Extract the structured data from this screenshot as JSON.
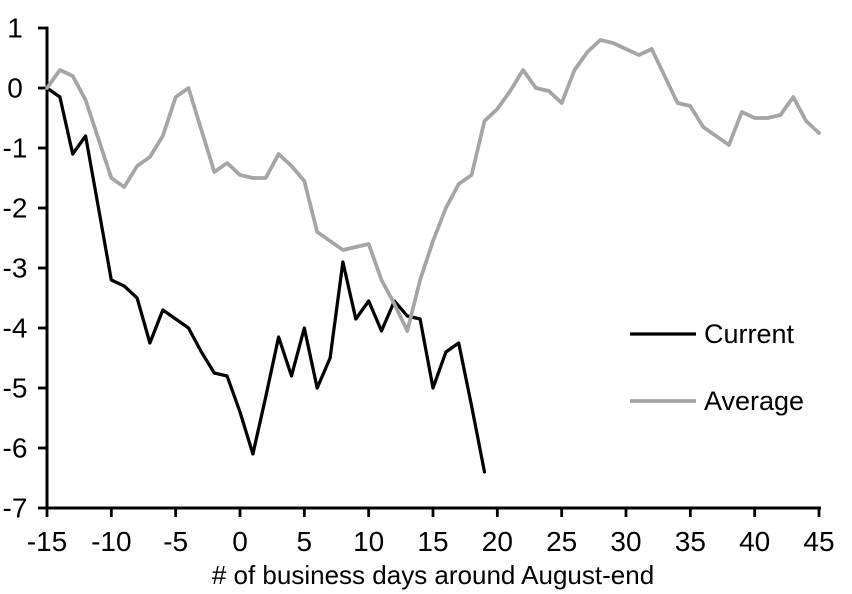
{
  "chart_data": {
    "type": "line",
    "title": "",
    "xlabel": "# of business days around August-end",
    "ylabel": "",
    "xlim": [
      -15,
      45
    ],
    "ylim": [
      -7,
      1
    ],
    "x_ticks": [
      -15,
      -10,
      -5,
      0,
      5,
      10,
      15,
      20,
      25,
      30,
      35,
      40,
      45
    ],
    "y_ticks": [
      1,
      0,
      -1,
      -2,
      -3,
      -4,
      -5,
      -6,
      -7
    ],
    "grid": false,
    "legend_position": "right-middle",
    "axis_color": "#000000",
    "series": [
      {
        "name": "Current",
        "color": "#000000",
        "line_width": 3.25,
        "x": [
          -15,
          -14,
          -13,
          -12,
          -11,
          -10,
          -9,
          -8,
          -7,
          -6,
          -5,
          -4,
          -3,
          -2,
          -1,
          0,
          1,
          2,
          3,
          4,
          5,
          6,
          7,
          8,
          9,
          10,
          11,
          12,
          13,
          14,
          15,
          16,
          17,
          18,
          19
        ],
        "values": [
          0,
          -0.15,
          -1.1,
          -0.8,
          -2.0,
          -3.2,
          -3.3,
          -3.5,
          -4.25,
          -3.7,
          -3.85,
          -4.0,
          -4.4,
          -4.75,
          -4.8,
          -5.4,
          -6.1,
          -5.15,
          -4.15,
          -4.8,
          -4.0,
          -5.0,
          -4.5,
          -2.9,
          -3.85,
          -3.55,
          -4.05,
          -3.55,
          -3.8,
          -3.85,
          -5.0,
          -4.4,
          -4.25,
          -5.3,
          -6.4
        ]
      },
      {
        "name": "Average",
        "color": "#a5a5a5",
        "line_width": 3.75,
        "x": [
          -15,
          -14,
          -13,
          -12,
          -11,
          -10,
          -9,
          -8,
          -7,
          -6,
          -5,
          -4,
          -3,
          -2,
          -1,
          0,
          1,
          2,
          3,
          4,
          5,
          6,
          7,
          8,
          9,
          10,
          11,
          12,
          13,
          14,
          15,
          16,
          17,
          18,
          19,
          20,
          21,
          22,
          23,
          24,
          25,
          26,
          27,
          28,
          29,
          30,
          31,
          32,
          33,
          34,
          35,
          36,
          37,
          38,
          39,
          40,
          41,
          42,
          43,
          44,
          45
        ],
        "values": [
          0,
          0.3,
          0.2,
          -0.2,
          -0.85,
          -1.5,
          -1.65,
          -1.3,
          -1.15,
          -0.8,
          -0.15,
          0.0,
          -0.7,
          -1.4,
          -1.25,
          -1.45,
          -1.5,
          -1.5,
          -1.1,
          -1.3,
          -1.55,
          -2.4,
          -2.55,
          -2.7,
          -2.65,
          -2.6,
          -3.2,
          -3.6,
          -4.05,
          -3.2,
          -2.55,
          -2.0,
          -1.6,
          -1.45,
          -0.55,
          -0.35,
          -0.05,
          0.3,
          0.0,
          -0.05,
          -0.25,
          0.3,
          0.6,
          0.8,
          0.75,
          0.65,
          0.55,
          0.65,
          0.2,
          -0.25,
          -0.3,
          -0.65,
          -0.8,
          -0.95,
          -0.4,
          -0.5,
          -0.5,
          -0.45,
          -0.15,
          -0.55,
          -0.75
        ]
      }
    ]
  }
}
